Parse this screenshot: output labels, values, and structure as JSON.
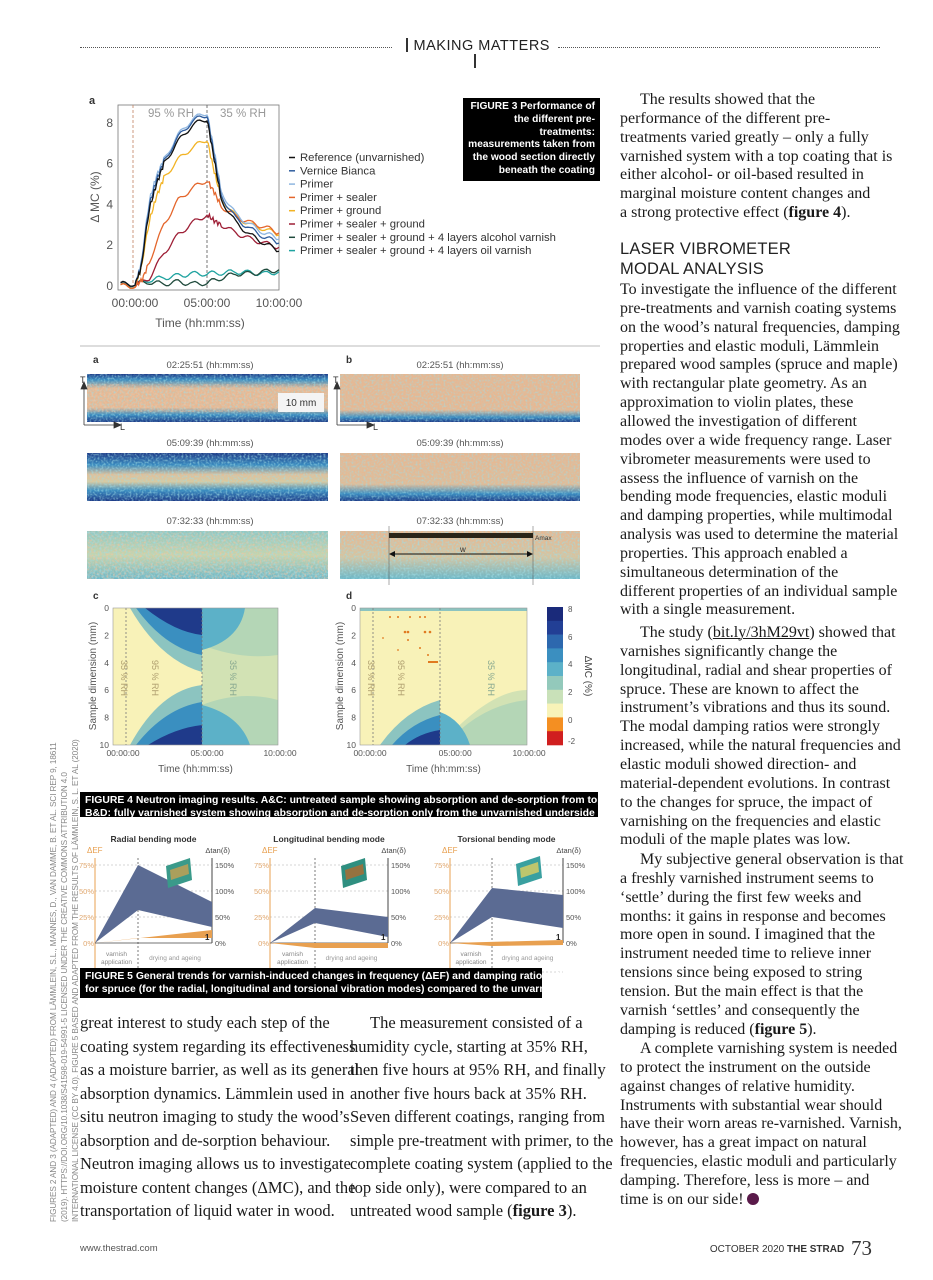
{
  "header": {
    "section": "MAKING MATTERS"
  },
  "figure3": {
    "panel_label": "a",
    "y_axis_label": "Δ MC (%)",
    "x_axis_label": "Time (hh:mm:ss)",
    "y_ticks": [
      "0",
      "2",
      "4",
      "6",
      "8"
    ],
    "x_ticks": [
      "00:00:00",
      "05:00:00",
      "10:00:00"
    ],
    "phase_labels": [
      "95 % RH",
      "35 % RH"
    ],
    "caption_label": "FIGURE 3",
    "caption_text": "Performance of the different pre-treatments: measurements taken from the wood section directly beneath the coating",
    "series": [
      {
        "name": "Reference (unvarnished)",
        "color": "#111111",
        "points": [
          [
            -1,
            0.1
          ],
          [
            0,
            0.1
          ],
          [
            0.4,
            0.8
          ],
          [
            1,
            3.8
          ],
          [
            1.5,
            5
          ],
          [
            2,
            6
          ],
          [
            3,
            7.1
          ],
          [
            4,
            7.9
          ],
          [
            5,
            8.2
          ],
          [
            5.5,
            6.2
          ],
          [
            6,
            4.2
          ],
          [
            7,
            3.1
          ],
          [
            8,
            2.5
          ],
          [
            9,
            2.1
          ],
          [
            10,
            1.7
          ]
        ]
      },
      {
        "name": "Vernice Bianca",
        "color": "#2f5d9e",
        "points": [
          [
            -1,
            0.1
          ],
          [
            0,
            0.1
          ],
          [
            0.4,
            0.9
          ],
          [
            1,
            4
          ],
          [
            1.5,
            5.2
          ],
          [
            2,
            6.1
          ],
          [
            3,
            7.3
          ],
          [
            4,
            8.1
          ],
          [
            5,
            8.4
          ],
          [
            5.5,
            6.4
          ],
          [
            6,
            4.4
          ],
          [
            7,
            3.3
          ],
          [
            8,
            2.8
          ],
          [
            9,
            2.4
          ],
          [
            10,
            2.1
          ]
        ]
      },
      {
        "name": "Primer",
        "color": "#8fb6e0",
        "points": [
          [
            -1,
            0.1
          ],
          [
            0,
            0.1
          ],
          [
            0.4,
            1
          ],
          [
            1,
            4.2
          ],
          [
            1.5,
            5.4
          ],
          [
            2,
            6.2
          ],
          [
            3,
            7.4
          ],
          [
            4,
            8.2
          ],
          [
            5,
            8.5
          ],
          [
            5.5,
            6.6
          ],
          [
            6,
            4.6
          ],
          [
            7,
            3.5
          ],
          [
            8,
            3
          ],
          [
            9,
            2.6
          ],
          [
            10,
            2.3
          ]
        ]
      },
      {
        "name": "Primer + sealer",
        "color": "#e4662c",
        "points": [
          [
            -1,
            0
          ],
          [
            0,
            0
          ],
          [
            0.5,
            0.3
          ],
          [
            1,
            1.2
          ],
          [
            2,
            3
          ],
          [
            3,
            4.2
          ],
          [
            4,
            4.8
          ],
          [
            5,
            5.2
          ],
          [
            5.5,
            4.6
          ],
          [
            6,
            3.9
          ],
          [
            7,
            3.4
          ],
          [
            8,
            3.1
          ],
          [
            9,
            2.9
          ],
          [
            10,
            2.6
          ]
        ]
      },
      {
        "name": "Primer + ground",
        "color": "#f2b324",
        "points": [
          [
            -1,
            0
          ],
          [
            0,
            0
          ],
          [
            0.4,
            0.8
          ],
          [
            1,
            3.2
          ],
          [
            1.5,
            4.4
          ],
          [
            2,
            5.3
          ],
          [
            3,
            6.2
          ],
          [
            4,
            6.8
          ],
          [
            5,
            7.2
          ],
          [
            5.5,
            5.6
          ],
          [
            6,
            4.3
          ],
          [
            7,
            3.4
          ],
          [
            8,
            3
          ],
          [
            9,
            2.8
          ],
          [
            10,
            2.5
          ]
        ]
      },
      {
        "name": "Primer + sealer + ground",
        "color": "#9e1f36",
        "points": [
          [
            -1,
            0
          ],
          [
            0,
            0
          ],
          [
            1,
            0.4
          ],
          [
            2,
            1.6
          ],
          [
            3,
            2.5
          ],
          [
            4,
            3.1
          ],
          [
            5,
            3.5
          ],
          [
            5.5,
            3.2
          ],
          [
            6,
            3
          ],
          [
            7,
            2.6
          ],
          [
            8,
            2.3
          ],
          [
            9,
            2.1
          ],
          [
            10,
            1.9
          ]
        ]
      },
      {
        "name": "Primer + sealer + ground + 4 layers alcohol varnish",
        "color": "#1f4a3c",
        "points": [
          [
            -1,
            0.1
          ],
          [
            0,
            0.1
          ],
          [
            1,
            0.2
          ],
          [
            2,
            0.1
          ],
          [
            3,
            0.2
          ],
          [
            4,
            0.1
          ],
          [
            5,
            0.15
          ],
          [
            6,
            0.4
          ],
          [
            7,
            0.6
          ],
          [
            8,
            0.6
          ],
          [
            9,
            0.7
          ],
          [
            10,
            0.8
          ]
        ]
      },
      {
        "name": "Primer + sealer + ground + 4 layers oil varnish",
        "color": "#1fa3a0",
        "points": [
          [
            -1,
            0
          ],
          [
            0,
            0.1
          ],
          [
            1,
            0.3
          ],
          [
            2,
            0.4
          ],
          [
            3,
            0.5
          ],
          [
            4,
            0.6
          ],
          [
            5,
            0.6
          ],
          [
            6,
            0.65
          ],
          [
            7,
            0.7
          ],
          [
            8,
            0.65
          ],
          [
            9,
            0.6
          ],
          [
            10,
            0.7
          ]
        ]
      }
    ]
  },
  "figure4": {
    "panels": {
      "a": {
        "label": "a",
        "timestamps": [
          "02:25:51 (hh:mm:ss)",
          "05:09:39 (hh:mm:ss)",
          "07:32:33 (hh:mm:ss)"
        ],
        "scale_bar": "10 mm",
        "axis_t": "T",
        "axis_l": "L"
      },
      "b": {
        "label": "b",
        "timestamps": [
          "02:25:51 (hh:mm:ss)",
          "05:09:39 (hh:mm:ss)",
          "07:32:33 (hh:mm:ss)"
        ],
        "axis_t": "T",
        "axis_l": "L",
        "amax": "Amax",
        "w": "w"
      },
      "c": {
        "label": "c"
      },
      "d": {
        "label": "d"
      }
    },
    "heatmap_y_label": "Sample dimension (mm)",
    "heatmap_x_label": "Time (hh:mm:ss)",
    "heatmap_y_ticks": [
      "0",
      "2",
      "4",
      "6",
      "8",
      "10"
    ],
    "heatmap_x_ticks": [
      "00:00:00",
      "05:00:00",
      "10:00:00"
    ],
    "phase_labels": [
      "35 % RH",
      "95 % RH",
      "35 % RH"
    ],
    "colorbar": {
      "label": "ΔMC (%)",
      "ticks": [
        "8",
        "6",
        "4",
        "2",
        "0",
        "-2"
      ],
      "colors": [
        "#1a2a7a",
        "#223f95",
        "#2d68ae",
        "#3b8fc0",
        "#5cb1c8",
        "#93c9bb",
        "#c9e1b9",
        "#f8f3b8",
        "#f48f22",
        "#d01f1f"
      ]
    },
    "caption_label": "FIGURE 4",
    "caption_line1": "Neutron imaging results. A&C: untreated sample showing absorption and de-sorption from top and bottom.",
    "caption_line2": "B&D: fully varnished system showing absorption and de-sorption only from the unvarnished underside"
  },
  "figure5": {
    "charts": [
      {
        "title": "Radial bending mode"
      },
      {
        "title": "Longitudinal bending mode"
      },
      {
        "title": "Torsional bending mode"
      }
    ],
    "left_axis_label": "ΔEF",
    "left_ticks": [
      "75%",
      "50%",
      "25%",
      "0%"
    ],
    "right_axis_label": "Δtan(δ)",
    "right_ticks": [
      "150%",
      "100%",
      "50%",
      "0%"
    ],
    "phase_1": [
      "varnish",
      "application"
    ],
    "phase_2": "drying and ageing",
    "marker": "1",
    "colors": {
      "frequency": "#e8a050",
      "damping": "#5b6b93"
    },
    "caption_label": "FIGURE 5",
    "caption_line1": "General trends for varnish-induced changes in frequency (ΔEF) and damping ratios (Δtan(δ))",
    "caption_line2": "for spruce (for the radial, longitudinal and torsional vibration modes) compared to the unvarnished state"
  },
  "article": {
    "left_columns": [
      {
        "indent": false,
        "lines": [
          "great interest to study each step of the",
          "coating system regarding its effectiveness",
          "as a moisture barrier, as well as its general",
          "absorption dynamics. Lämmlein used in",
          "situ neutron imaging to study the wood’s",
          "absorption and de-sorption behaviour.",
          "Neutron imaging allows us to investigate",
          "moisture content changes (ΔMC), and the",
          "transportation of liquid water in wood."
        ]
      },
      {
        "indent": true,
        "lines": [
          "The measurement consisted of a",
          "humidity cycle, starting at 35% RH,",
          "then five hours at 95% RH, and finally",
          "another five hours back at 35% RH.",
          "Seven different coatings, ranging from",
          "simple pre-treatment with primer, to the",
          "complete coating system (applied to the",
          "top side only), were compared to an",
          "untreated wood sample (figure 3)."
        ]
      }
    ],
    "right_column": [
      {
        "type": "para",
        "indent": true,
        "lines": [
          "The results showed that the",
          "performance of the different pre-",
          "treatments varied greatly – only a fully",
          "varnished system with a top coating that is",
          "either alcohol- or oil-based resulted in",
          "marginal moisture content changes and",
          "a strong protective effect (figure 4)."
        ]
      },
      {
        "type": "heading",
        "lines": [
          "LASER VIBROMETER",
          "MODAL ANALYSIS"
        ]
      },
      {
        "type": "para",
        "indent": false,
        "lines": [
          "To investigate the influence of the different",
          "pre-treatments and varnish coating systems",
          "on the wood’s natural frequencies, damping",
          "properties and elastic moduli, Lämmlein",
          "prepared wood samples (spruce and maple)",
          "with rectangular plate geometry. As an",
          "approximation to violin plates, these",
          "allowed the investigation of different",
          "modes over a wide frequency range. Laser",
          "vibrometer measurements were used to",
          "assess the influence of varnish on the",
          "bending mode frequencies, elastic moduli",
          "and damping properties, while multimodal",
          "analysis was used to determine the material",
          "properties. This approach enabled a",
          "simultaneous determination of the",
          "different properties of an individual sample",
          "with a single measurement."
        ]
      },
      {
        "type": "para",
        "indent": true,
        "lines": [
          "The study (bit.ly/3hM29vt) showed that",
          "varnishes significantly change the",
          "longitudinal, radial and shear properties of",
          "spruce. These are known to affect the",
          "instrument’s vibrations and thus its sound.",
          "The modal damping ratios were strongly",
          "increased, while the natural frequencies and",
          "elastic moduli showed direction- and",
          "material-dependent evolutions. In contrast",
          "to the changes for spruce, the impact of",
          "varnishing on the frequencies and elastic",
          "moduli of the maple plates was low."
        ]
      },
      {
        "type": "para",
        "indent": true,
        "lines": [
          "My subjective general observation is that",
          "a freshly varnished instrument seems to",
          "‘settle’ during the first few weeks and",
          "months: it gains in response and becomes",
          "more open in sound. I imagined that the",
          "instrument needed time to relieve inner",
          "tensions since being exposed to string",
          "tension. But the main effect is that the",
          "varnish ‘settles’ and consequently the",
          "damping is reduced (figure 5)."
        ]
      },
      {
        "type": "para",
        "indent": true,
        "lines": [
          "A complete varnishing system is needed",
          "to protect the instrument on the outside",
          "against changes of relative humidity.",
          "Instruments with substantial wear should",
          "have their worn areas re-varnished. Varnish,",
          "however, has a great impact on natural",
          "frequencies, elastic moduli and particularly",
          "damping. Therefore, less is more – and",
          "time is on our side!"
        ]
      }
    ],
    "link": "bit.ly/3hM29vt",
    "end_mark_color": "#5a1a4a"
  },
  "credit": [
    "FIGURES 2 AND 3 (ADAPTED) AND 4 (ADAPTED) FROM LÄMMLEIN, S.L., MANNES, D., VAN DAMME, B. ET AL. SCI REP 9, 18611",
    "(2019). HTTPS://DOI.ORG/10.1038/S41598-019-54991-5 LICENSED UNDER THE CREATIVE COMMONS ATTRIBUTION 4.0",
    "INTERNATIONAL LICENSE (CC BY 4.0). FIGURE 5 BASED AND ADAPTED FROM THE RESULTS OF LÄMMLEIN, S. L. ET AL (2020)"
  ],
  "footer": {
    "website": "www.thestrad.com",
    "date": "OCTOBER 2020",
    "magazine": "THE STRAD",
    "page": "73"
  }
}
